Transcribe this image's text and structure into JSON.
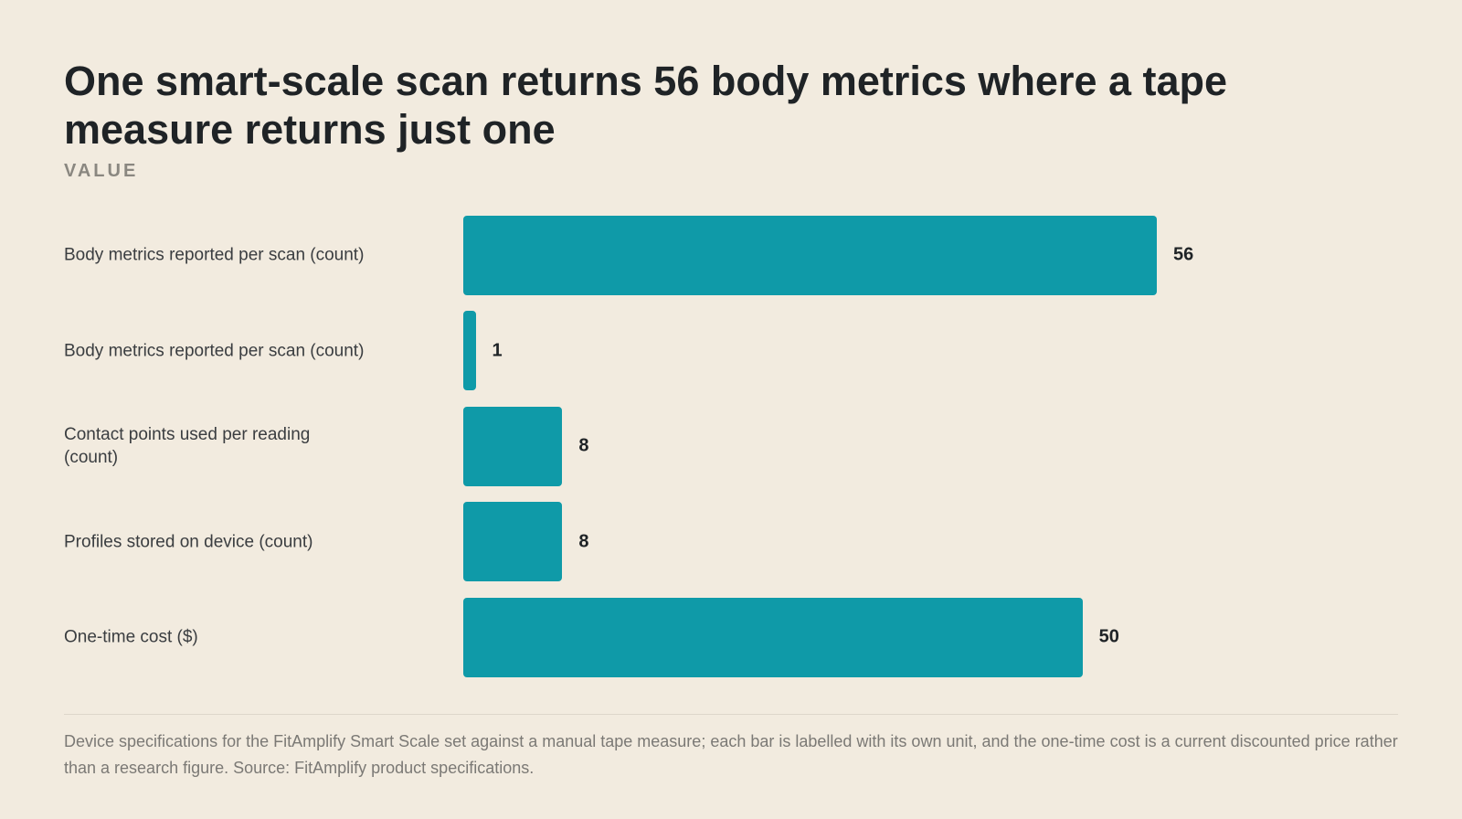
{
  "chart_data": {
    "type": "bar",
    "orientation": "horizontal",
    "title": "One smart-scale scan returns 56 body metrics where a tape measure returns just one",
    "subtitle": "VALUE",
    "categories": [
      "Body metrics reported per scan (count)",
      "Body metrics reported per scan (count)",
      "Contact points used per reading (count)",
      "Profiles stored on device (count)",
      "One-time cost ($)"
    ],
    "values": [
      56,
      1,
      8,
      8,
      50
    ],
    "color": "#0f9aa8",
    "note": "Device specifications for the FitAmplify Smart Scale set against a manual tape measure; each bar is labelled with its own unit, and the one-time cost is a current discounted price rather than a research figure. Source: FitAmplify product specifications."
  }
}
